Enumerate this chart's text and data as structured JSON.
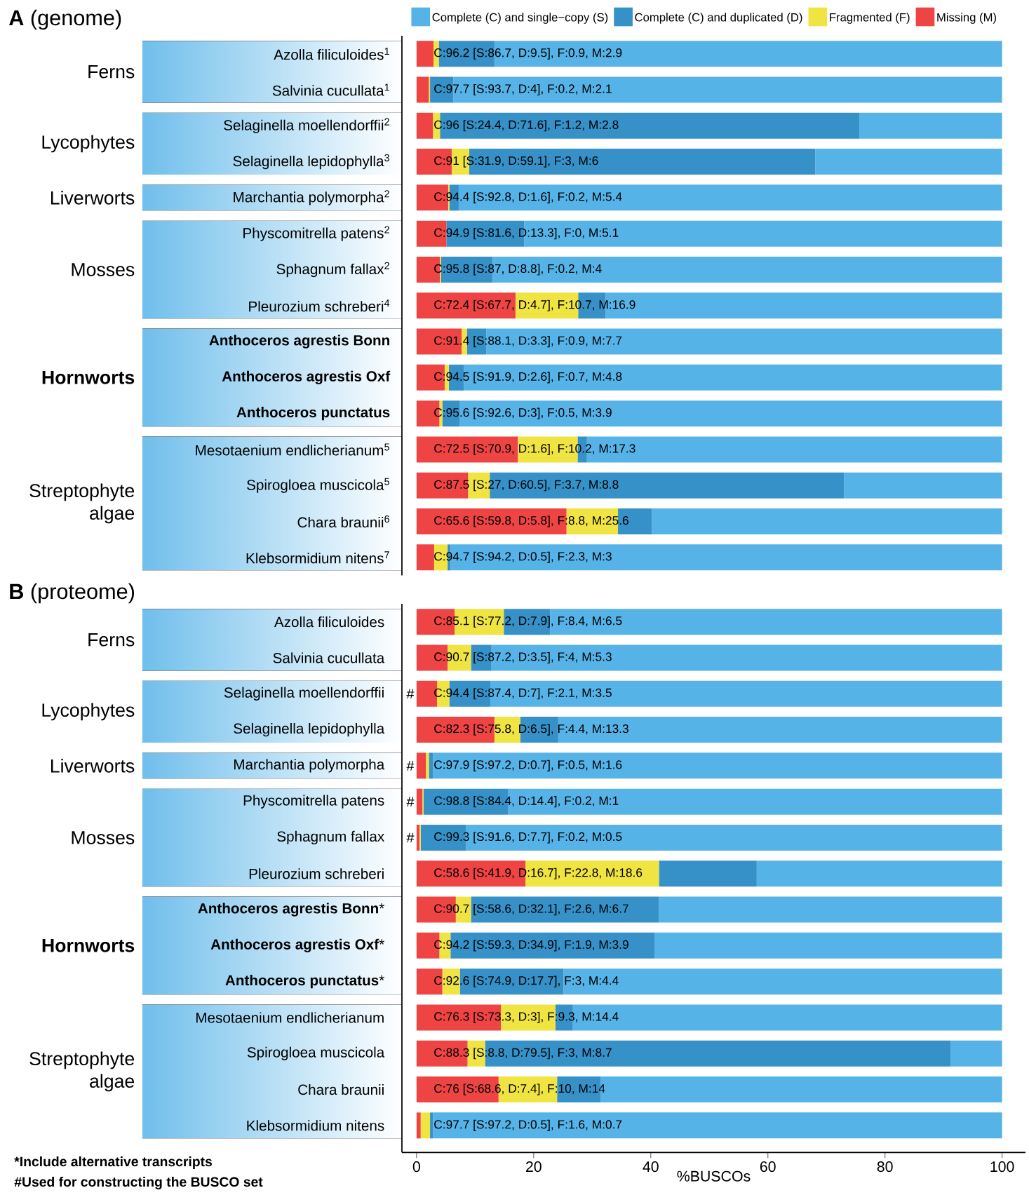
{
  "chart_data": [
    {
      "type": "bar",
      "orientation": "horizontal",
      "stacked": true,
      "categories": [
        "Azolla filiculoides$^{1}$",
        "Salvinia cucullata$^{1}$",
        "Selaginella moellendorffii$^{2}$",
        "Selaginella lepidophylla$^{3}$",
        "Marchantia polymorpha$^{2}$",
        "Physcomitrella patens$^{2}$",
        "Sphagnum fallax$^{2}$",
        "Pleurozium schreberi$^{4}$",
        "**Anthoceros agrestis Bonn**",
        "**Anthoceros agrestis Oxf**",
        "**Anthoceros punctatus**",
        "Mesotaenium endlicherianum$^{5}$",
        "Spirogloea muscicola$^{5}$",
        "Chara braunii$^{6}$",
        "Klebsormidium nitens$^{7}$"
      ],
      "series": [
        {
          "name": "Missing (M)",
          "color": "#ef4444",
          "values": [
            2.9,
            2.1,
            2.8,
            6,
            5.4,
            5.1,
            4,
            16.9,
            7.7,
            4.8,
            3.9,
            17.3,
            8.8,
            25.6,
            3
          ]
        },
        {
          "name": "Fragmented (F)",
          "color": "#f0e442",
          "values": [
            0.9,
            0.2,
            1.2,
            3,
            0.2,
            0,
            0.2,
            10.7,
            0.9,
            0.7,
            0.5,
            10.2,
            3.7,
            8.8,
            2.3
          ]
        },
        {
          "name": "Complete (C) and duplicated (D)",
          "color": "#3591c8",
          "values": [
            9.5,
            4,
            71.6,
            59.1,
            1.6,
            13.3,
            8.8,
            4.7,
            3.3,
            2.6,
            3,
            1.6,
            60.5,
            5.8,
            0.5
          ]
        },
        {
          "name": "Complete (C) and single−copy (S)",
          "color": "#56b3e8",
          "values": [
            86.7,
            93.7,
            24.4,
            31.9,
            92.8,
            81.6,
            87,
            67.7,
            88.1,
            91.9,
            92.6,
            70.9,
            27,
            59.8,
            94.2
          ]
        }
      ],
      "value_labels": [
        "C:96.2 [S:86.7, D:9.5], F:0.9, M:2.9",
        "C:97.7 [S:93.7, D:4], F:0.2, M:2.1",
        "C:96 [S:24.4, D:71.6], F:1.2, M:2.8",
        "C:91 [S:31.9, D:59.1], F:3, M:6",
        "C:94.4 [S:92.8, D:1.6], F:0.2, M:5.4",
        "C:94.9 [S:81.6, D:13.3], F:0, M:5.1",
        "C:95.8 [S:87, D:8.8], F:0.2, M:4",
        "C:72.4 [S:67.7, D:4.7], F:10.7, M:16.9",
        "C:91.4 [S:88.1, D:3.3], F:0.9, M:7.7",
        "C:94.5 [S:91.9, D:2.6], F:0.7, M:4.8",
        "C:95.6 [S:92.6, D:3], F:0.5, M:3.9",
        "C:72.5 [S:70.9, D:1.6], F:10.2, M:17.3",
        "C:87.5 [S:27, D:60.5], F:3.7, M:8.8",
        "C:65.6 [S:59.8, D:5.8], F:8.8, M:25.6",
        "C:94.7 [S:94.2, D:0.5], F:2.3, M:3"
      ],
      "annotations": [
        "**A** (genome)",
        "Ferns",
        "Lycophytes",
        "Liverworts",
        "Mosses",
        "**Hornworts**",
        "Streptophyte algae"
      ],
      "xlim": [
        -2.5,
        100
      ],
      "xticks": [
        0,
        20,
        40,
        60,
        80,
        100
      ],
      "tick_labels": "y",
      "legend": "top"
    },
    {
      "type": "bar",
      "orientation": "horizontal",
      "stacked": true,
      "xlabel": "%BUSCOs",
      "categories": [
        "Azolla filiculoides",
        "Salvinia cucullata",
        "Selaginella moellendorffii",
        "Selaginella lepidophylla",
        "Marchantia polymorpha",
        "Physcomitrella patens",
        "Sphagnum fallax",
        "Pleurozium schreberi",
        "**Anthoceros agrestis Bonn***",
        "**Anthoceros agrestis Oxf***",
        "**Anthoceros punctatus***",
        "Mesotaenium endlicherianum",
        "Spirogloea muscicola",
        "Chara braunii",
        "Klebsormidium nitens"
      ],
      "series": [
        {
          "color": "#ef4444",
          "values": [
            6.5,
            5.3,
            3.5,
            13.3,
            1.6,
            1,
            0.5,
            18.6,
            6.7,
            3.9,
            4.4,
            14.4,
            8.7,
            14,
            0.7
          ]
        },
        {
          "color": "#f0e442",
          "values": [
            8.4,
            4,
            2.1,
            4.4,
            0.5,
            0.2,
            0.2,
            22.8,
            2.6,
            1.9,
            3,
            9.3,
            3,
            10,
            1.6
          ]
        },
        {
          "color": "#3591c8",
          "values": [
            7.9,
            3.5,
            7,
            6.5,
            0.7,
            14.4,
            7.7,
            16.7,
            32.1,
            34.9,
            17.7,
            3,
            79.5,
            7.4,
            0.5
          ]
        },
        {
          "color": "#56b3e8",
          "values": [
            77.2,
            87.2,
            87.4,
            75.8,
            97.2,
            84.4,
            91.6,
            41.9,
            58.6,
            59.3,
            74.9,
            73.3,
            8.8,
            68.6,
            97.2
          ]
        }
      ],
      "value_labels": [
        "C:85.1 [S:77.2, D:7.9], F:8.4, M:6.5",
        "C:90.7 [S:87.2, D:3.5], F:4, M:5.3",
        "C:94.4 [S:87.4, D:7], F:2.1, M:3.5",
        "C:82.3 [S:75.8, D:6.5], F:4.4, M:13.3",
        "C:97.9 [S:97.2, D:0.7], F:0.5, M:1.6",
        "C:98.8 [S:84.4, D:14.4], F:0.2, M:1",
        "C:99.3 [S:91.6, D:7.7], F:0.2, M:0.5",
        "C:58.6 [S:41.9, D:16.7], F:22.8, M:18.6",
        "C:90.7 [S:58.6, D:32.1], F:2.6, M:6.7",
        "C:94.2 [S:59.3, D:34.9], F:1.9, M:3.9",
        "C:92.6 [S:74.9, D:17.7], F:3, M:4.4",
        "C:76.3 [S:73.3, D:3], F:9.3, M:14.4",
        "C:88.3 [S:8.8, D:79.5], F:3, M:8.7",
        "C:76 [S:68.6, D:7.4], F:10, M:14",
        "C:97.7 [S:97.2, D:0.5], F:1.6, M:0.7"
      ],
      "annotations": [
        "**B** (proteome)",
        "Ferns",
        "Lycophytes",
        "Liverworts",
        "Mosses",
        "**Hornworts**",
        "Streptophyte algae",
        "#",
        "#",
        "#",
        "#",
        "*Include alternative transcripts",
        "#Used for constructing the BUSCO set"
      ],
      "xlim": [
        -2.5,
        104
      ],
      "xticks": [
        0,
        20,
        40,
        60,
        80,
        100
      ]
    }
  ]
}
